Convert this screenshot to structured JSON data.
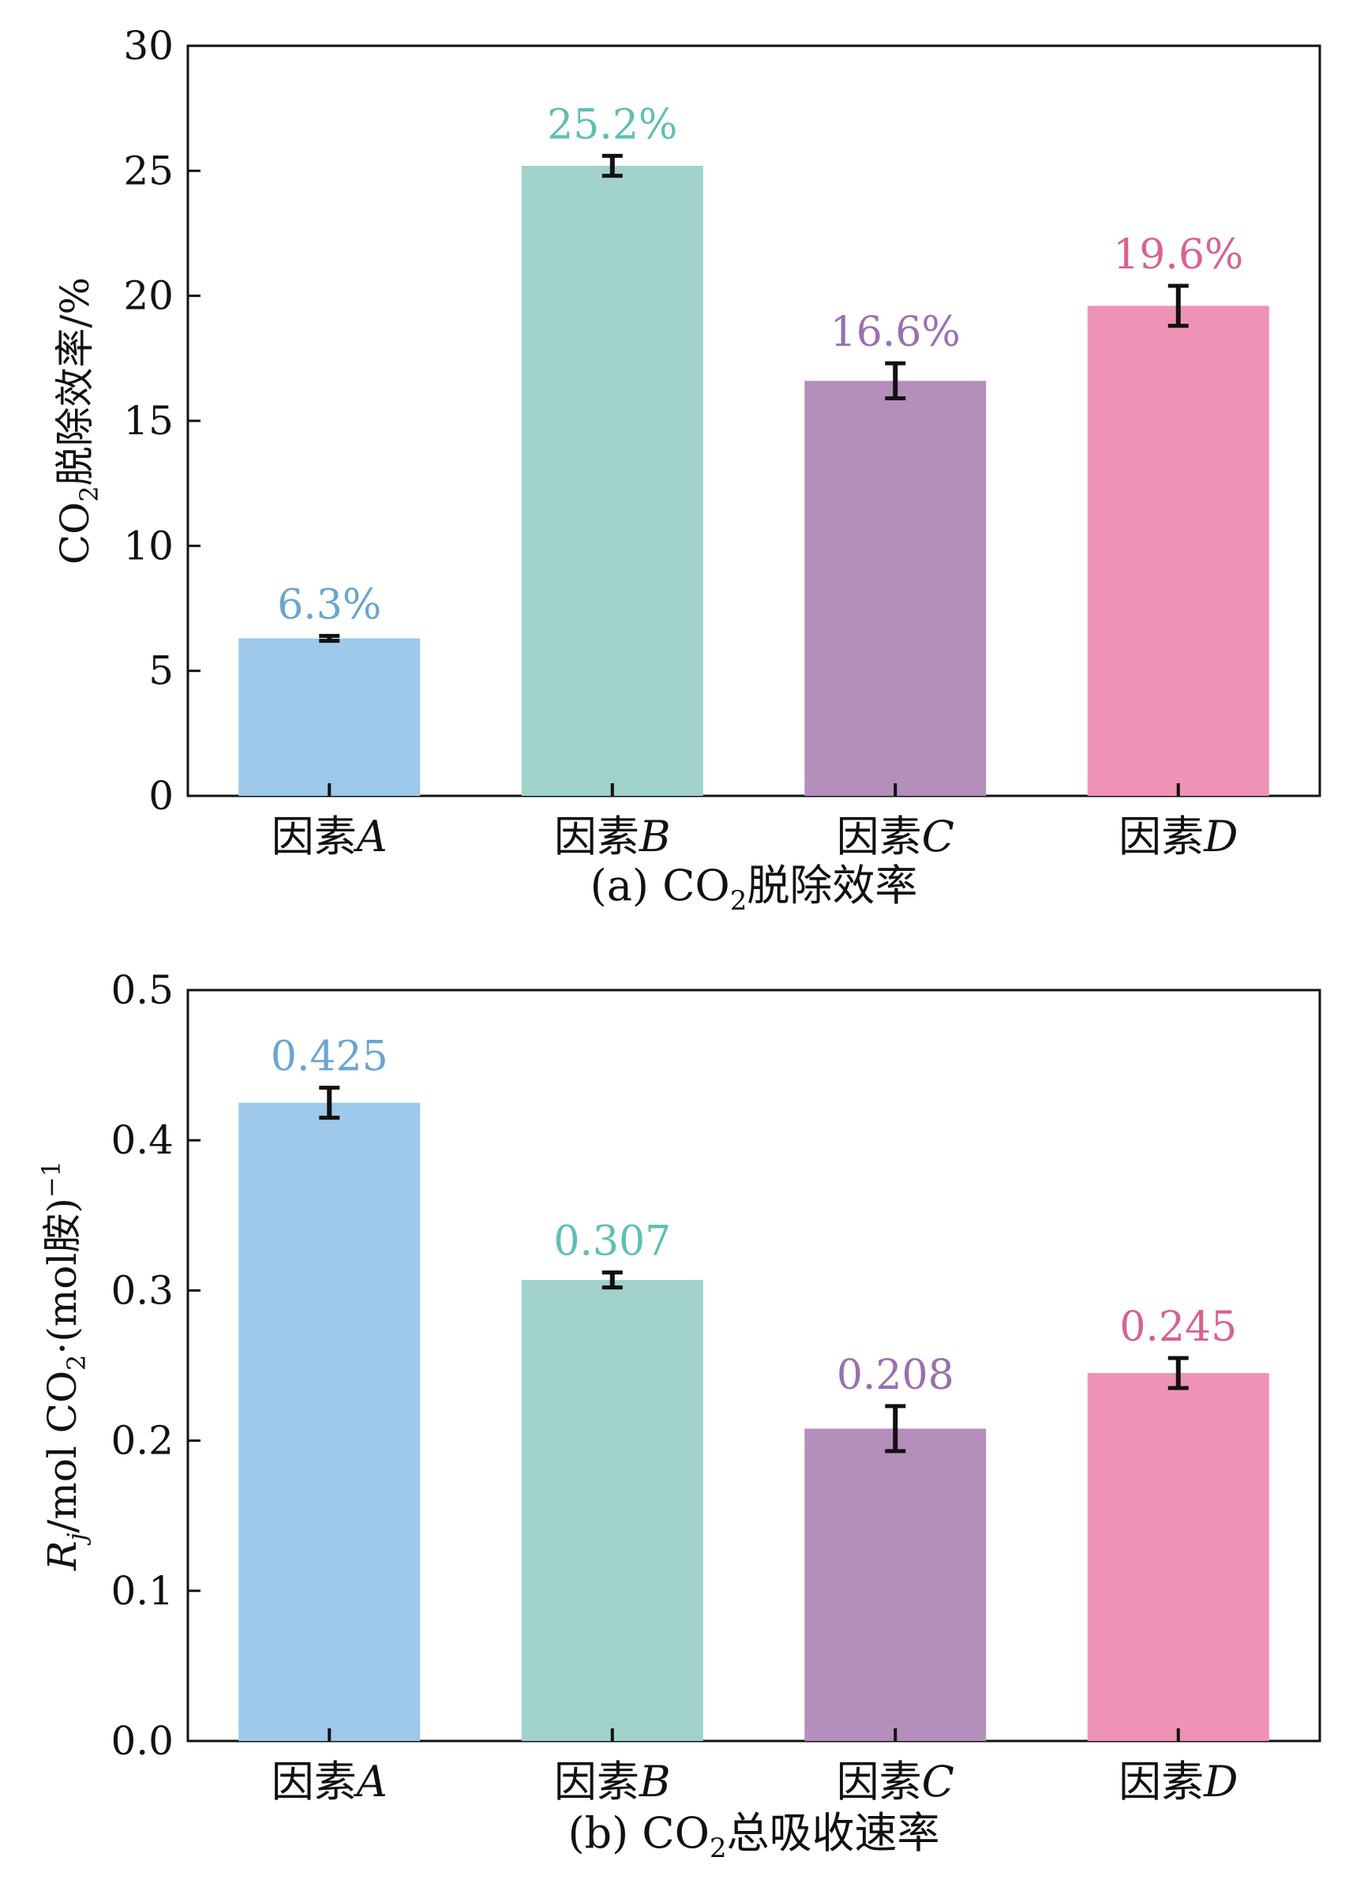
{
  "chart_data": [
    {
      "type": "bar",
      "caption_prefix": "(a) CO",
      "caption_sub": "2",
      "caption_suffix": "脱除效率",
      "ylabel_prefix": "CO",
      "ylabel_sub": "2",
      "ylabel_suffix": "脱除效率/%",
      "categories": [
        {
          "prefix": "因素",
          "letter": "A"
        },
        {
          "prefix": "因素",
          "letter": "B"
        },
        {
          "prefix": "因素",
          "letter": "C"
        },
        {
          "prefix": "因素",
          "letter": "D"
        }
      ],
      "values": [
        6.3,
        25.2,
        16.6,
        19.6
      ],
      "errors": [
        0.1,
        0.4,
        0.7,
        0.8
      ],
      "value_labels": [
        "6.3%",
        "25.2%",
        "16.6%",
        "19.6%"
      ],
      "ylim": [
        0,
        30
      ],
      "yticks": [
        0,
        5,
        10,
        15,
        20,
        25,
        30
      ],
      "ytick_labels": [
        "0",
        "5",
        "10",
        "15",
        "20",
        "25",
        "30"
      ],
      "colors": [
        "#9ec9ea",
        "#a0d2cb",
        "#b48fbb",
        "#ee93b6"
      ],
      "label_colors": [
        "#6aa5d0",
        "#5fbfb3",
        "#9a6fb0",
        "#d9628f"
      ]
    },
    {
      "type": "bar",
      "caption_prefix": "(b) CO",
      "caption_sub": "2",
      "caption_suffix": "总吸收速率",
      "ylabel_r": "R",
      "ylabel_j": "j",
      "ylabel_mid": "/mol CO",
      "ylabel_sub": "2",
      "ylabel_suffix": "·(mol胺)",
      "ylabel_sup": "−1",
      "categories": [
        {
          "prefix": "因素",
          "letter": "A"
        },
        {
          "prefix": "因素",
          "letter": "B"
        },
        {
          "prefix": "因素",
          "letter": "C"
        },
        {
          "prefix": "因素",
          "letter": "D"
        }
      ],
      "values": [
        0.425,
        0.307,
        0.208,
        0.245
      ],
      "errors": [
        0.01,
        0.005,
        0.015,
        0.01
      ],
      "value_labels": [
        "0.425",
        "0.307",
        "0.208",
        "0.245"
      ],
      "ylim": [
        0,
        0.5
      ],
      "yticks": [
        0,
        0.1,
        0.2,
        0.3,
        0.4,
        0.5
      ],
      "ytick_labels": [
        "0.0",
        "0.1",
        "0.2",
        "0.3",
        "0.4",
        "0.5"
      ],
      "colors": [
        "#9ec9ea",
        "#a0d2cb",
        "#b48fbb",
        "#ee93b6"
      ],
      "label_colors": [
        "#6aa5d0",
        "#5fbfb3",
        "#9a6fb0",
        "#d9628f"
      ]
    }
  ]
}
